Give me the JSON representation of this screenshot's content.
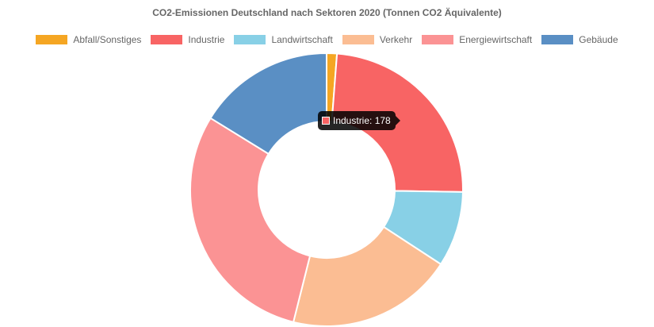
{
  "chart_data": {
    "type": "pie",
    "title": "CO2-Emissionen Deutschland nach Sektoren 2020 (Tonnen CO2 Äquivalente)",
    "legend_position": "top",
    "categories": [
      "Abfall/Sonstiges",
      "Industrie",
      "Landwirtschaft",
      "Verkehr",
      "Energiewirtschaft",
      "Gebäude"
    ],
    "values": [
      9,
      178,
      66,
      146,
      221,
      120
    ],
    "colors": [
      "#f5a623",
      "#f86464",
      "#88d0e6",
      "#fbbd93",
      "#fb9394",
      "#5a8fc4"
    ],
    "tooltip": {
      "category": "Industrie",
      "value": 178,
      "text": "Industrie: 178"
    }
  }
}
